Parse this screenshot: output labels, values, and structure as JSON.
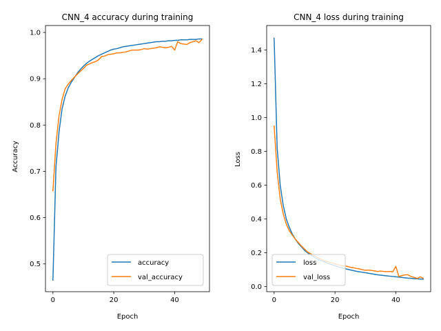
{
  "chart_data": [
    {
      "type": "line",
      "title": "CNN_4 accuracy during training",
      "xlabel": "Epoch",
      "ylabel": "Accuracy",
      "xlim": [
        -2.45,
        51.45
      ],
      "ylim": [
        0.44,
        1.015
      ],
      "xticks": [
        0,
        20,
        40
      ],
      "yticks": [
        0.5,
        0.6,
        0.7,
        0.8,
        0.9,
        1.0
      ],
      "ytick_labels": [
        "0.5",
        "0.6",
        "0.7",
        "0.8",
        "0.9",
        "1.0"
      ],
      "grid": false,
      "legend": "lower-right",
      "series": [
        {
          "name": "accuracy",
          "color": "#1f77b4",
          "x": [
            0,
            1,
            2,
            3,
            4,
            5,
            6,
            7,
            8,
            9,
            10,
            11,
            12,
            13,
            14,
            15,
            16,
            17,
            18,
            19,
            20,
            21,
            22,
            23,
            24,
            25,
            26,
            27,
            28,
            29,
            30,
            31,
            32,
            33,
            34,
            35,
            36,
            37,
            38,
            39,
            40,
            41,
            42,
            43,
            44,
            45,
            46,
            47,
            48,
            49
          ],
          "values": [
            0.465,
            0.71,
            0.785,
            0.835,
            0.862,
            0.88,
            0.892,
            0.902,
            0.912,
            0.92,
            0.927,
            0.933,
            0.938,
            0.942,
            0.946,
            0.95,
            0.953,
            0.956,
            0.959,
            0.962,
            0.964,
            0.965,
            0.967,
            0.969,
            0.97,
            0.971,
            0.972,
            0.973,
            0.974,
            0.975,
            0.976,
            0.977,
            0.978,
            0.979,
            0.98,
            0.98,
            0.981,
            0.981,
            0.982,
            0.982,
            0.983,
            0.983,
            0.984,
            0.984,
            0.984,
            0.985,
            0.985,
            0.985,
            0.986,
            0.986
          ]
        },
        {
          "name": "val_accuracy",
          "color": "#ff7f0e",
          "x": [
            0,
            1,
            2,
            3,
            4,
            5,
            6,
            7,
            8,
            9,
            10,
            11,
            12,
            13,
            14,
            15,
            16,
            17,
            18,
            19,
            20,
            21,
            22,
            23,
            24,
            25,
            26,
            27,
            28,
            29,
            30,
            31,
            32,
            33,
            34,
            35,
            36,
            37,
            38,
            39,
            40,
            41,
            42,
            43,
            44,
            45,
            46,
            47,
            48,
            49
          ],
          "values": [
            0.658,
            0.76,
            0.82,
            0.855,
            0.878,
            0.888,
            0.896,
            0.903,
            0.91,
            0.916,
            0.922,
            0.929,
            0.932,
            0.935,
            0.937,
            0.941,
            0.948,
            0.949,
            0.952,
            0.953,
            0.954,
            0.956,
            0.956,
            0.957,
            0.958,
            0.96,
            0.962,
            0.962,
            0.962,
            0.963,
            0.965,
            0.964,
            0.965,
            0.966,
            0.967,
            0.969,
            0.968,
            0.967,
            0.968,
            0.97,
            0.962,
            0.98,
            0.976,
            0.975,
            0.974,
            0.978,
            0.98,
            0.982,
            0.978,
            0.985
          ]
        }
      ]
    },
    {
      "type": "line",
      "title": "CNN_4 loss during training",
      "xlabel": "Epoch",
      "ylabel": "Loss",
      "xlim": [
        -2.45,
        51.45
      ],
      "ylim": [
        -0.03,
        1.545
      ],
      "xticks": [
        0,
        20,
        40
      ],
      "yticks": [
        0.0,
        0.2,
        0.4,
        0.6,
        0.8,
        1.0,
        1.2,
        1.4
      ],
      "ytick_labels": [
        "0.0",
        "0.2",
        "0.4",
        "0.6",
        "0.8",
        "1.0",
        "1.2",
        "1.4"
      ],
      "grid": false,
      "legend": "lower-left",
      "series": [
        {
          "name": "loss",
          "color": "#1f77b4",
          "x": [
            0,
            1,
            2,
            3,
            4,
            5,
            6,
            7,
            8,
            9,
            10,
            11,
            12,
            13,
            14,
            15,
            16,
            17,
            18,
            19,
            20,
            21,
            22,
            23,
            24,
            25,
            26,
            27,
            28,
            29,
            30,
            31,
            32,
            33,
            34,
            35,
            36,
            37,
            38,
            39,
            40,
            41,
            42,
            43,
            44,
            45,
            46,
            47,
            48,
            49
          ],
          "values": [
            1.47,
            0.82,
            0.6,
            0.48,
            0.4,
            0.35,
            0.31,
            0.28,
            0.255,
            0.235,
            0.215,
            0.2,
            0.188,
            0.176,
            0.166,
            0.157,
            0.15,
            0.143,
            0.136,
            0.13,
            0.124,
            0.118,
            0.113,
            0.108,
            0.103,
            0.099,
            0.095,
            0.091,
            0.088,
            0.085,
            0.082,
            0.079,
            0.076,
            0.073,
            0.07,
            0.068,
            0.066,
            0.064,
            0.062,
            0.06,
            0.058,
            0.056,
            0.054,
            0.052,
            0.05,
            0.049,
            0.047,
            0.046,
            0.045,
            0.044
          ]
        },
        {
          "name": "val_loss",
          "color": "#ff7f0e",
          "x": [
            0,
            1,
            2,
            3,
            4,
            5,
            6,
            7,
            8,
            9,
            10,
            11,
            12,
            13,
            14,
            15,
            16,
            17,
            18,
            19,
            20,
            21,
            22,
            23,
            24,
            25,
            26,
            27,
            28,
            29,
            30,
            31,
            32,
            33,
            34,
            35,
            36,
            37,
            38,
            39,
            40,
            41,
            42,
            43,
            44,
            45,
            46,
            47,
            48,
            49
          ],
          "values": [
            0.95,
            0.68,
            0.52,
            0.43,
            0.37,
            0.33,
            0.305,
            0.28,
            0.26,
            0.24,
            0.222,
            0.205,
            0.195,
            0.185,
            0.175,
            0.165,
            0.158,
            0.15,
            0.145,
            0.14,
            0.135,
            0.13,
            0.125,
            0.122,
            0.12,
            0.115,
            0.112,
            0.108,
            0.105,
            0.1,
            0.097,
            0.098,
            0.096,
            0.093,
            0.09,
            0.092,
            0.09,
            0.089,
            0.09,
            0.088,
            0.12,
            0.06,
            0.065,
            0.07,
            0.07,
            0.06,
            0.055,
            0.048,
            0.058,
            0.05
          ]
        }
      ]
    }
  ]
}
